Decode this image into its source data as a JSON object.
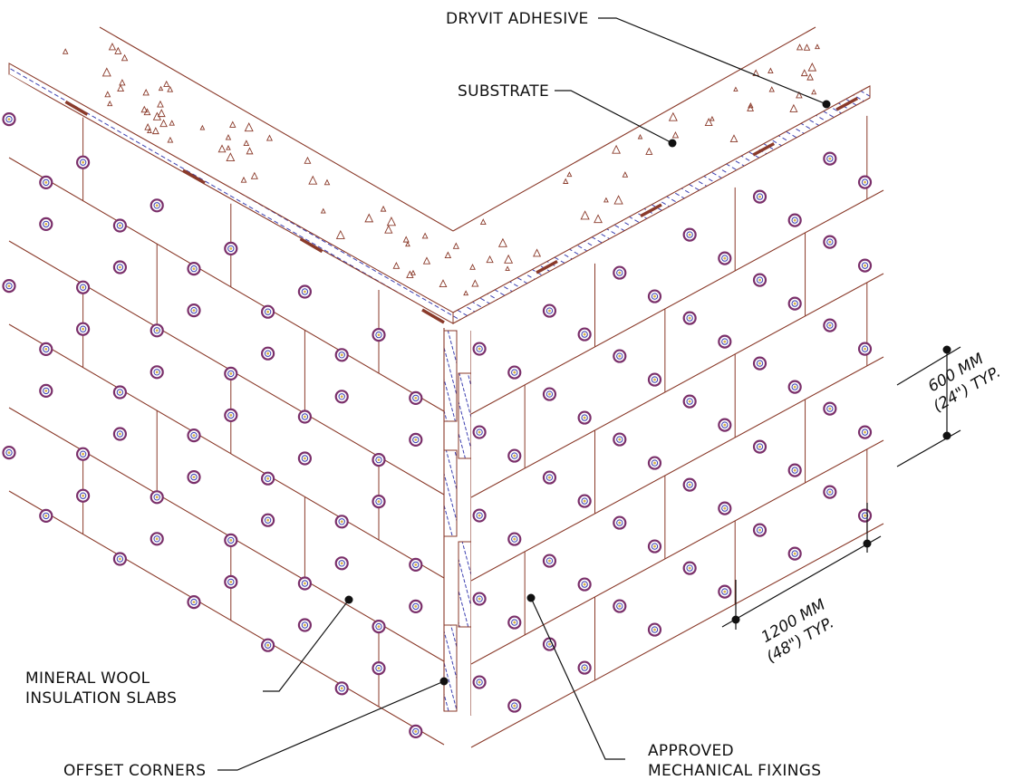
{
  "labels": {
    "adhesive": "DRYVIT ADHESIVE",
    "substrate": "SUBSTRATE",
    "slabs_line1": "MINERAL WOOL",
    "slabs_line2": "INSULATION SLABS",
    "corners": "OFFSET CORNERS",
    "fixings_line1": "APPROVED",
    "fixings_line2": "MECHANICAL FIXINGS"
  },
  "dimensions": {
    "vertical_line1": "600 MM",
    "vertical_line2": "(24\") TYP.",
    "horizontal_line1": "1200 MM",
    "horizontal_line2": "(48\") TYP."
  },
  "colors": {
    "edge": "#8a3a2a",
    "hatch": "#3b3fb0",
    "fixing_ring": "#7a2f6a",
    "fixing_core": "#d9b24a",
    "leader": "#111111"
  }
}
